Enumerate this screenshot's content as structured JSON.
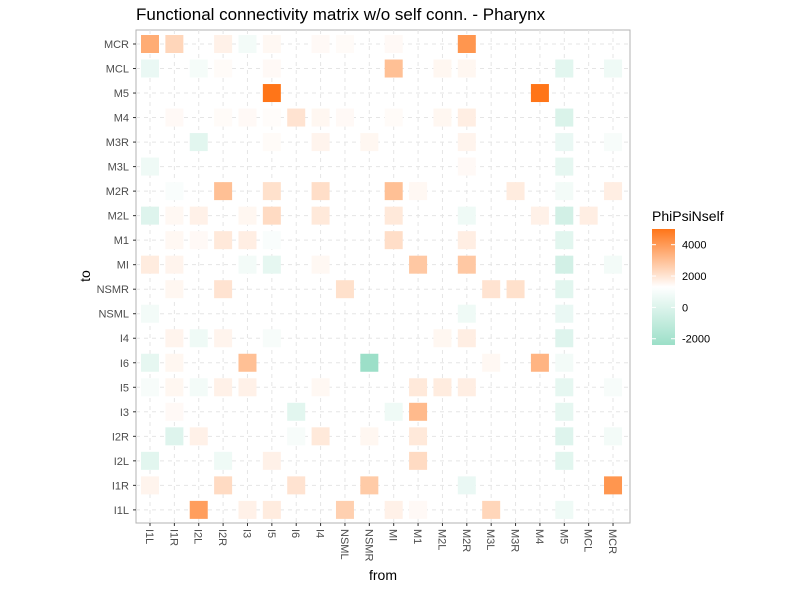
{
  "chart_data": {
    "type": "heatmap",
    "title": "Functional connectivity matrix w/o self conn. - Pharynx",
    "xlabel": "from",
    "ylabel": "to",
    "categories": [
      "I1L",
      "I1R",
      "I2L",
      "I2R",
      "I3",
      "I5",
      "I6",
      "I4",
      "NSML",
      "NSMR",
      "MI",
      "M1",
      "M2L",
      "M2R",
      "M3L",
      "M3R",
      "M4",
      "M5",
      "MCL",
      "MCR"
    ],
    "x": [
      "I1L",
      "I1R",
      "I2L",
      "I2R",
      "I3",
      "I5",
      "I6",
      "I4",
      "NSML",
      "NSMR",
      "MI",
      "M1",
      "M2L",
      "M2R",
      "M3L",
      "M3R",
      "M4",
      "M5",
      "MCL",
      "MCR"
    ],
    "y": [
      "MCR",
      "MCL",
      "M5",
      "M4",
      "M3R",
      "M3L",
      "M2R",
      "M2L",
      "M1",
      "MI",
      "NSMR",
      "NSML",
      "I4",
      "I6",
      "I5",
      "I3",
      "I2R",
      "I2L",
      "I1R",
      "I1L"
    ],
    "values": [
      [
        3000,
        1500,
        0,
        500,
        -300,
        250,
        0,
        200,
        150,
        0,
        200,
        0,
        0,
        3800,
        0,
        0,
        0,
        0,
        0,
        0
      ],
      [
        -500,
        0,
        -250,
        150,
        0,
        200,
        0,
        0,
        0,
        0,
        2300,
        0,
        300,
        300,
        0,
        0,
        0,
        -700,
        0,
        -400
      ],
      [
        0,
        0,
        0,
        0,
        0,
        5000,
        0,
        0,
        0,
        0,
        0,
        0,
        0,
        0,
        0,
        0,
        5000,
        0,
        0,
        0
      ],
      [
        0,
        200,
        0,
        150,
        200,
        100,
        1000,
        300,
        200,
        0,
        150,
        0,
        300,
        600,
        0,
        0,
        0,
        -900,
        0,
        0
      ],
      [
        0,
        0,
        -700,
        0,
        0,
        150,
        0,
        400,
        0,
        300,
        0,
        0,
        0,
        400,
        0,
        0,
        0,
        -500,
        0,
        -200
      ],
      [
        -400,
        0,
        0,
        0,
        0,
        0,
        0,
        0,
        0,
        0,
        0,
        0,
        0,
        200,
        0,
        0,
        0,
        -600,
        0,
        0
      ],
      [
        0,
        -150,
        0,
        2300,
        0,
        1100,
        0,
        1200,
        0,
        0,
        2300,
        250,
        0,
        0,
        0,
        700,
        0,
        -300,
        0,
        600
      ],
      [
        -800,
        250,
        500,
        0,
        300,
        1300,
        0,
        800,
        0,
        0,
        800,
        0,
        0,
        -400,
        0,
        0,
        500,
        -1100,
        600,
        0
      ],
      [
        0,
        250,
        200,
        800,
        600,
        -150,
        0,
        0,
        0,
        0,
        1200,
        0,
        0,
        600,
        0,
        0,
        0,
        -700,
        0,
        0
      ],
      [
        700,
        400,
        0,
        0,
        -300,
        -600,
        0,
        250,
        0,
        0,
        0,
        2000,
        0,
        2000,
        0,
        0,
        0,
        -1100,
        0,
        -300
      ],
      [
        0,
        300,
        0,
        1000,
        0,
        0,
        0,
        0,
        1100,
        0,
        0,
        0,
        0,
        0,
        1000,
        1100,
        0,
        -700,
        0,
        0
      ],
      [
        -300,
        0,
        0,
        0,
        0,
        0,
        0,
        0,
        0,
        0,
        0,
        0,
        0,
        -400,
        0,
        0,
        0,
        -500,
        0,
        0
      ],
      [
        0,
        400,
        -400,
        400,
        0,
        -200,
        0,
        0,
        0,
        0,
        0,
        0,
        300,
        600,
        0,
        0,
        0,
        -800,
        0,
        0
      ],
      [
        -600,
        300,
        0,
        0,
        2300,
        0,
        0,
        0,
        0,
        -2400,
        0,
        0,
        0,
        0,
        250,
        0,
        2700,
        -300,
        0,
        0
      ],
      [
        -200,
        300,
        -300,
        500,
        500,
        0,
        0,
        250,
        0,
        0,
        0,
        800,
        700,
        600,
        0,
        0,
        0,
        -600,
        0,
        -200
      ],
      [
        0,
        200,
        0,
        0,
        0,
        0,
        -700,
        0,
        0,
        0,
        -400,
        2500,
        0,
        0,
        0,
        0,
        0,
        -600,
        0,
        0
      ],
      [
        0,
        -800,
        500,
        0,
        0,
        0,
        -200,
        800,
        0,
        300,
        0,
        800,
        0,
        0,
        0,
        0,
        0,
        -800,
        0,
        -300
      ],
      [
        -700,
        0,
        0,
        -400,
        0,
        500,
        0,
        0,
        0,
        0,
        0,
        1300,
        0,
        0,
        0,
        0,
        0,
        -700,
        0,
        0
      ],
      [
        400,
        0,
        0,
        1300,
        0,
        0,
        1000,
        0,
        0,
        1900,
        0,
        0,
        0,
        -500,
        0,
        0,
        0,
        0,
        0,
        3800
      ],
      [
        0,
        0,
        3500,
        0,
        500,
        700,
        0,
        0,
        1700,
        0,
        500,
        200,
        0,
        0,
        1500,
        0,
        0,
        -400,
        0,
        0
      ]
    ],
    "legend": {
      "title": "PhiPsiNself",
      "ticks": [
        4000,
        2000,
        0,
        -2000
      ],
      "tick_labels": [
        "4000",
        "2000",
        "0",
        "-2000"
      ],
      "range": [
        -2400,
        5000
      ],
      "placement": "right"
    },
    "colors": {
      "high": "#ff7518",
      "mid": "#ffffff",
      "low": "#9cdfc8",
      "grid": "#e5e5e5",
      "panel_border": "#b3b3b3"
    },
    "grid": true
  }
}
